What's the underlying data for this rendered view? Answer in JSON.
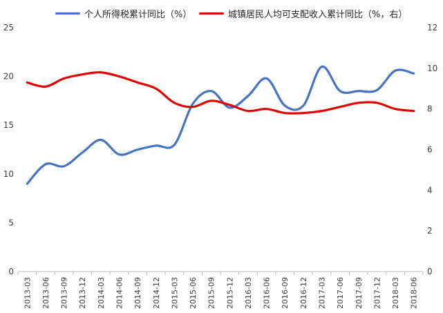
{
  "chart_data": {
    "type": "line",
    "title": "",
    "xlabel": "",
    "ylabel": "",
    "categories": [
      "2013-03",
      "2013-06",
      "2013-09",
      "2013-12",
      "2014-03",
      "2014-06",
      "2014-09",
      "2014-12",
      "2015-03",
      "2015-06",
      "2015-09",
      "2015-12",
      "2016-03",
      "2016-06",
      "2016-09",
      "2016-12",
      "2017-03",
      "2017-06",
      "2017-09",
      "2017-12",
      "2018-03",
      "2018-06"
    ],
    "y_left": {
      "range": [
        0,
        25
      ],
      "ticks": [
        "0",
        "5",
        "10",
        "15",
        "20",
        "25"
      ]
    },
    "y_right": {
      "range": [
        0,
        12
      ],
      "ticks": [
        "0",
        "2",
        "4",
        "6",
        "8",
        "10",
        "12"
      ]
    },
    "grid": false,
    "legend_position": "top",
    "series": [
      {
        "name": "个人所得税累计同比（%）",
        "axis": "left",
        "color": "#4472C4",
        "values": [
          9.0,
          11.0,
          10.8,
          12.2,
          13.5,
          12.0,
          12.5,
          12.9,
          13.0,
          17.2,
          18.5,
          16.8,
          18.0,
          19.8,
          17.0,
          17.0,
          21.0,
          18.5,
          18.5,
          18.6,
          20.6,
          20.3
        ]
      },
      {
        "name": "城镇居民人均可支配收入累计同比（%，右）",
        "axis": "right",
        "color": "#E00000",
        "values": [
          9.3,
          9.1,
          9.5,
          9.7,
          9.8,
          9.6,
          9.3,
          9.0,
          8.3,
          8.1,
          8.4,
          8.2,
          7.9,
          8.0,
          7.8,
          7.8,
          7.9,
          8.1,
          8.3,
          8.3,
          8.0,
          7.9
        ]
      }
    ]
  }
}
